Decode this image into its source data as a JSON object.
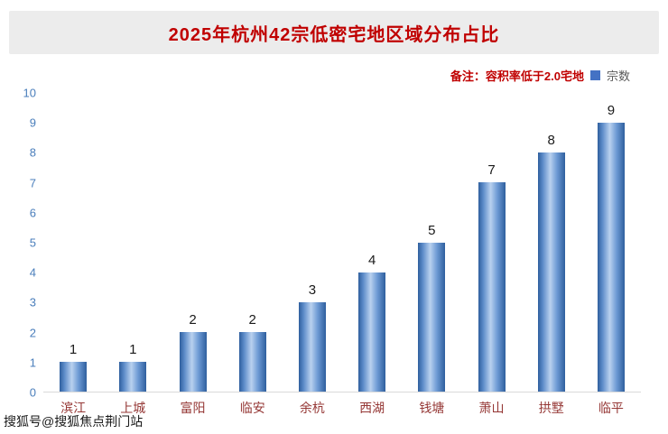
{
  "title": "2025年杭州42宗低密宅地区域分布占比",
  "legend": {
    "note": "备注：容积率低于2.0宅地",
    "series_label": "宗数",
    "swatch_color": "#4472c4"
  },
  "watermark": "搜狐号@搜狐焦点荆门站",
  "colors": {
    "title": "#c00000",
    "note": "#c00000",
    "bar": "#4472c4",
    "y_tick": "#4a7ebb",
    "x_tick": "#953735",
    "value_label": "#1a1a1a",
    "title_bar_bg": "#ececec"
  },
  "chart_data": {
    "type": "bar",
    "title": "2025年杭州42宗低密宅地区域分布占比",
    "series_name": "宗数",
    "categories": [
      "滨江",
      "上城",
      "富阳",
      "临安",
      "余杭",
      "西湖",
      "钱塘",
      "萧山",
      "拱墅",
      "临平"
    ],
    "values": [
      1,
      1,
      2,
      2,
      3,
      4,
      5,
      7,
      8,
      9
    ],
    "xlabel": "",
    "ylabel": "",
    "ylim": [
      0,
      10
    ],
    "yticks": [
      0,
      1,
      2,
      3,
      4,
      5,
      6,
      7,
      8,
      9,
      10
    ],
    "grid": false,
    "legend_position": "top-right",
    "annotation": "备注：容积率低于2.0宅地",
    "data_labels": true
  }
}
